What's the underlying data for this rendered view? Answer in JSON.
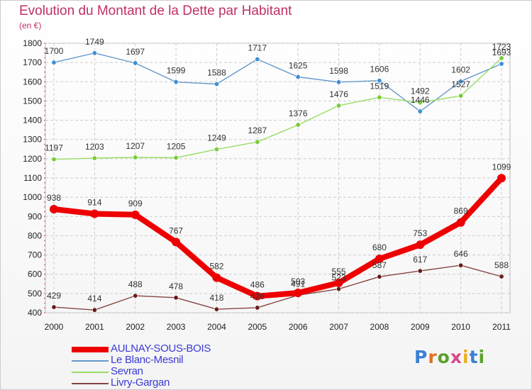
{
  "title": "Evolution du Montant de la Dette par Habitant",
  "subtitle": "(en €)",
  "logo": {
    "text": "Proxiti",
    "letters": [
      "P",
      "r",
      "o",
      "x",
      "i",
      "t",
      "i"
    ],
    "colors": [
      "#3b7fd4",
      "#e07020",
      "#5aa02c",
      "#d84a8a",
      "#e8b020",
      "#3b7fd4",
      "#5aa02c"
    ]
  },
  "chart_data": {
    "type": "line",
    "title": "Evolution du Montant de la Dette par Habitant",
    "ylabel": "(en €)",
    "xlabel": "",
    "ylim": [
      400,
      1800
    ],
    "yticks": [
      400,
      500,
      600,
      700,
      800,
      900,
      1000,
      1100,
      1200,
      1300,
      1400,
      1500,
      1600,
      1700,
      1800
    ],
    "grid": true,
    "legend_position": "bottom-left",
    "x": [
      "2000",
      "2001",
      "2002",
      "2003",
      "2004",
      "2005",
      "2006",
      "2007",
      "2008",
      "2009",
      "2010",
      "2011"
    ],
    "series": [
      {
        "name": "AULNAY-SOUS-BOIS",
        "color": "#ee0000",
        "thick": true,
        "values": [
          938,
          914,
          909,
          767,
          582,
          486,
          503,
          555,
          680,
          753,
          869,
          1099
        ]
      },
      {
        "name": "Le Blanc-Mesnil",
        "color": "#6699cc",
        "marker": "#3b8fd8",
        "values": [
          1700,
          1749,
          1697,
          1599,
          1588,
          1717,
          1625,
          1598,
          1606,
          1446,
          1602,
          1693
        ]
      },
      {
        "name": "Sevran",
        "color": "#99dd66",
        "marker": "#77cc33",
        "values": [
          1197,
          1203,
          1207,
          1205,
          1249,
          1287,
          1376,
          1476,
          1519,
          1492,
          1527,
          1723
        ]
      },
      {
        "name": "Livry-Gargan",
        "color": "#884444",
        "marker": "#6a1a1a",
        "values": [
          429,
          414,
          488,
          478,
          418,
          426,
          491,
          523,
          587,
          617,
          646,
          588
        ]
      }
    ]
  }
}
